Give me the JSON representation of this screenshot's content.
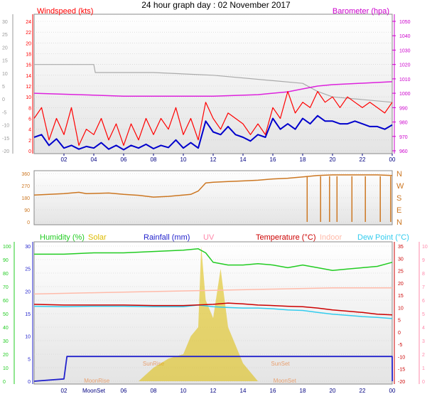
{
  "title": "24 hour graph day : 02 November 2017",
  "colors": {
    "wind": "#ff0000",
    "gust": "#ff0000",
    "avg_wind": "#0000cc",
    "barometer": "#dd22dd",
    "wind_dir": "#cc7722",
    "humidity": "#22cc22",
    "solar": "#ddbb00",
    "rainfall": "#2222cc",
    "uv": "#ff88aa",
    "temperature": "#cc0000",
    "indoor": "#ffbbaa",
    "dew_point": "#33ccee",
    "grid": "#cccccc",
    "axis_left": "#999999",
    "axis_right": "#cc00cc",
    "x_axis": "#000080"
  },
  "chart_data": [
    {
      "type": "line",
      "panel": "wind-barometer",
      "x_ticks": [
        "02",
        "04",
        "06",
        "08",
        "10",
        "12",
        "14",
        "16",
        "18",
        "20",
        "22",
        "00"
      ],
      "left_labels": {
        "ylabel": "Windspeed (kts)",
        "ylim": [
          0,
          24
        ],
        "ticks": [
          "0",
          "2",
          "4",
          "6",
          "8",
          "10",
          "12",
          "14",
          "16",
          "18",
          "20",
          "22",
          "24"
        ]
      },
      "left_outer_ticks": [
        "-20",
        "-15",
        "-10",
        "-5",
        "0",
        "5",
        "10",
        "15",
        "20",
        "25",
        "30"
      ],
      "right_labels": {
        "ylabel": "Barometer (hpa)",
        "ylim": [
          960,
          1050
        ],
        "ticks": [
          "960",
          "970",
          "980",
          "990",
          "1000",
          "1010",
          "1020",
          "1030",
          "1040",
          "1050"
        ]
      },
      "series": [
        {
          "key": "gust",
          "x": [
            0,
            0.5,
            1,
            1.5,
            2,
            2.5,
            3,
            3.5,
            4,
            4.5,
            5,
            5.5,
            6,
            6.5,
            7,
            7.5,
            8,
            8.5,
            9,
            9.5,
            10,
            10.5,
            11,
            11.5,
            12,
            12.5,
            13,
            13.5,
            14,
            14.5,
            15,
            15.5,
            16,
            16.5,
            17,
            17.5,
            18,
            18.5,
            19,
            19.5,
            20,
            20.5,
            21,
            21.5,
            22,
            22.5,
            23,
            23.5,
            24
          ],
          "y": [
            6,
            8,
            2,
            6,
            3,
            8,
            1,
            4,
            3,
            6,
            2,
            5,
            1,
            5,
            2,
            6,
            3,
            6,
            4,
            8,
            3,
            6,
            2,
            9,
            6,
            4,
            7,
            6,
            5,
            3,
            5,
            3,
            8,
            6,
            11,
            7,
            9,
            8,
            11,
            9,
            10,
            8,
            10,
            9,
            8,
            9,
            8,
            7,
            9
          ]
        },
        {
          "key": "avg_wind",
          "x": [
            0,
            0.5,
            1,
            1.5,
            2,
            2.5,
            3,
            3.5,
            4,
            4.5,
            5,
            5.5,
            6,
            6.5,
            7,
            7.5,
            8,
            8.5,
            9,
            9.5,
            10,
            10.5,
            11,
            11.5,
            12,
            12.5,
            13,
            13.5,
            14,
            14.5,
            15,
            15.5,
            16,
            16.5,
            17,
            17.5,
            18,
            18.5,
            19,
            19.5,
            20,
            20.5,
            21,
            21.5,
            22,
            22.5,
            23,
            23.5,
            24
          ],
          "y": [
            2.5,
            3,
            1,
            2.2,
            0.5,
            1,
            0.3,
            0.8,
            0.5,
            1.5,
            0.3,
            1,
            0.2,
            1,
            0.5,
            1.2,
            0.4,
            1,
            0.6,
            2,
            0.5,
            1.5,
            0.5,
            5.5,
            3.5,
            3,
            4.5,
            3,
            2.5,
            1.8,
            3,
            2.5,
            6,
            4,
            5,
            4,
            6,
            5,
            6.5,
            5.5,
            5.5,
            5,
            5,
            5.5,
            5,
            4.5,
            4.5,
            4,
            4.8
          ]
        },
        {
          "key": "barometer",
          "x": [
            0,
            3,
            6,
            9,
            12,
            15,
            17,
            18,
            19,
            20,
            22,
            24
          ],
          "y": [
            1000,
            999,
            998,
            998,
            998,
            999,
            1001,
            1003,
            1005,
            1006,
            1007,
            1008
          ]
        },
        {
          "key": "outer",
          "x": [
            0,
            4,
            4.1,
            8,
            12,
            16,
            18,
            19,
            20,
            24
          ],
          "y": [
            16,
            16,
            14.5,
            14.5,
            14,
            13,
            12.5,
            11,
            10,
            9
          ]
        }
      ]
    },
    {
      "type": "line",
      "panel": "wind-direction",
      "left_ticks": [
        "0",
        "90",
        "180",
        "270",
        "360"
      ],
      "right_labels": [
        "N",
        "W",
        "S",
        "E",
        "N"
      ],
      "ylim": [
        0,
        360
      ],
      "series": [
        {
          "key": "wind_dir",
          "x": [
            0,
            1,
            2,
            3,
            3.5,
            4,
            5,
            6,
            7,
            8,
            9,
            10,
            10.5,
            11,
            11.5,
            12,
            13,
            14,
            15,
            16,
            17,
            18,
            18.5,
            19,
            20,
            21,
            22,
            23,
            24
          ],
          "y": [
            200,
            205,
            210,
            220,
            210,
            212,
            215,
            205,
            198,
            185,
            190,
            200,
            205,
            230,
            290,
            295,
            300,
            305,
            310,
            320,
            325,
            335,
            340,
            345,
            350,
            350,
            350,
            350,
            345
          ]
        }
      ],
      "dropouts_x": [
        18.3,
        19.2,
        19.8,
        20.3,
        21.3,
        22.2,
        23.2,
        23.9
      ]
    },
    {
      "type": "line",
      "panel": "humidity-temperature",
      "legend": [
        {
          "label": "Humidity (%)",
          "key": "humidity"
        },
        {
          "label": "Solar",
          "key": "solar"
        },
        {
          "label": "Rainfall (mm)",
          "key": "rainfall"
        },
        {
          "label": "UV",
          "key": "uv"
        },
        {
          "label": "Temperature (°C)",
          "key": "temperature"
        },
        {
          "label": "Indoor",
          "key": "indoor"
        },
        {
          "label": "Dew Point (°C)",
          "key": "dew_point"
        }
      ],
      "left_humidity_ticks": [
        "0",
        "10",
        "20",
        "30",
        "40",
        "50",
        "60",
        "70",
        "80",
        "90",
        "100"
      ],
      "left_rain_ticks": [
        "0",
        "5",
        "10",
        "15",
        "20",
        "25",
        "30"
      ],
      "right_temp_ticks": [
        "35",
        "30",
        "25",
        "20",
        "15",
        "10",
        "5",
        "0",
        "-5",
        "-10",
        "-15",
        "-20"
      ],
      "right_uv_ticks": [
        "10",
        "9",
        "8",
        "7",
        "6",
        "5",
        "4",
        "3",
        "2",
        "1",
        "0"
      ],
      "x_ticks": [
        "02",
        "MoonSet",
        "06",
        "08",
        "10",
        "12",
        "14",
        "16",
        "18",
        "20",
        "22",
        "00"
      ],
      "annotations": [
        "SunRise",
        "SunSet",
        "MoonRise",
        "MoonSet",
        "MoonRise",
        "MoonSet"
      ],
      "humidity_ylim": [
        0,
        100
      ],
      "temperature_ylim": [
        -20,
        35
      ],
      "series": [
        {
          "key": "humidity",
          "x": [
            0,
            2,
            4,
            6,
            8,
            10,
            11,
            11.5,
            12,
            13,
            14,
            15,
            16,
            17,
            18,
            19,
            20,
            21,
            22,
            23,
            24
          ],
          "y": [
            94,
            94,
            95,
            95,
            96,
            97,
            98,
            95,
            88,
            86,
            86,
            87,
            86,
            84,
            86,
            84,
            82,
            83,
            84,
            85,
            88
          ]
        },
        {
          "key": "temperature",
          "x": [
            0,
            2,
            4,
            6,
            8,
            10,
            12,
            13,
            14,
            15,
            16,
            17,
            18,
            19,
            20,
            21,
            22,
            23,
            24
          ],
          "y": [
            11.3,
            11,
            11,
            11,
            10.8,
            10.8,
            11.3,
            11.8,
            11.5,
            11,
            10.8,
            10.5,
            10.3,
            9.8,
            9,
            8.5,
            8,
            7.3,
            7
          ]
        },
        {
          "key": "indoor",
          "x": [
            0,
            4,
            8,
            12,
            16,
            20,
            24
          ],
          "y": [
            15.5,
            16,
            16.5,
            17,
            17.5,
            18,
            18
          ]
        },
        {
          "key": "dew_point",
          "x": [
            0,
            2,
            4,
            6,
            8,
            10,
            11,
            12,
            13,
            14,
            15,
            16,
            17,
            18,
            19,
            20,
            21,
            22,
            23,
            24
          ],
          "y": [
            10.5,
            10.3,
            10.5,
            10.5,
            10.3,
            10.3,
            11,
            10.3,
            10,
            9.8,
            9.8,
            9.5,
            9,
            8.8,
            8,
            7.3,
            6.8,
            6.3,
            6,
            5.5
          ]
        },
        {
          "key": "rainfall",
          "x": [
            0,
            2,
            2.2,
            4,
            24,
            24.01
          ],
          "y": [
            0,
            0.5,
            5.5,
            5.5,
            5.5,
            0
          ]
        },
        {
          "key": "solar",
          "x": [
            7,
            8,
            9,
            10,
            10.5,
            11,
            11.2,
            11.5,
            12,
            12.5,
            13,
            13.5,
            14,
            15
          ],
          "y": [
            0,
            3,
            5,
            6,
            10,
            12,
            30,
            18,
            14,
            25,
            12,
            8,
            4,
            0
          ]
        }
      ]
    }
  ]
}
